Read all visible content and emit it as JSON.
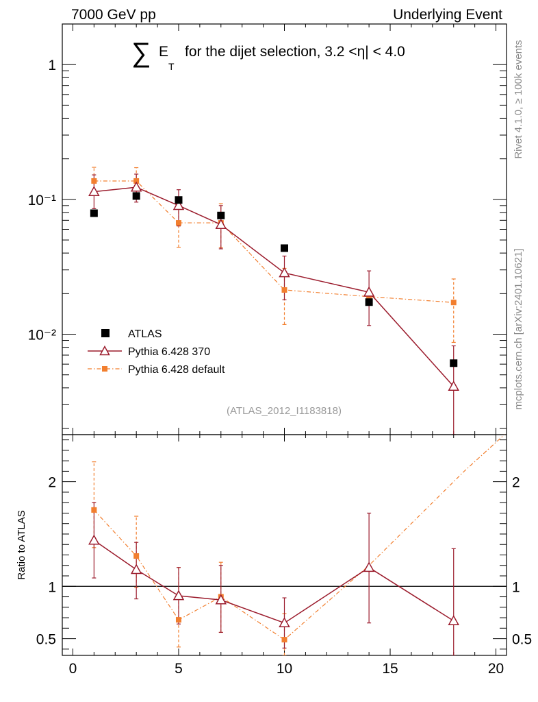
{
  "header": {
    "left": "7000 GeV pp",
    "right": "Underlying Event",
    "side_top": "Rivet 4.1.0, ≥ 100k events",
    "side_bottom": "mcplots.cern.ch [arXiv:2401.10621]"
  },
  "title": {
    "sum_symbol": "∑",
    "e": "E",
    "t_sub": "T",
    "rest": "for the dijet selection, 3.2 <η| < 4.0"
  },
  "analysis_id": "(ATLAS_2012_I1183818)",
  "colors": {
    "data": "#000000",
    "p370": "#9b1b2c",
    "pdef": "#f27f2f"
  },
  "chart_data": [
    {
      "type": "scatter",
      "scale": "log",
      "xlim": [
        -0.5,
        20.5
      ],
      "ylim": [
        0.0018,
        2.0
      ],
      "yticks": [
        {
          "value": 1,
          "label": "1"
        },
        {
          "value": 0.1,
          "label": "10⁻¹"
        },
        {
          "value": 0.01,
          "label": "10⁻²"
        }
      ],
      "legend": [
        "ATLAS",
        "Pythia 6.428 370",
        "Pythia 6.428 default"
      ],
      "legend_position": "bottom-left",
      "series": [
        {
          "name": "ATLAS",
          "style": "markers",
          "x": [
            1,
            3,
            5,
            7,
            10,
            14,
            18
          ],
          "y": [
            0.079,
            0.106,
            0.099,
            0.076,
            0.0435,
            0.0173,
            0.0061
          ]
        },
        {
          "name": "Pythia 6.428 370",
          "style": "line-triangle",
          "x": [
            1,
            3,
            5,
            7,
            10,
            14,
            18
          ],
          "y": [
            0.114,
            0.123,
            0.09,
            0.065,
            0.0285,
            0.0205,
            0.0041
          ],
          "err_lo": [
            0.0854,
            0.0955,
            0.0635,
            0.043,
            0.018,
            0.0116,
            0.0013
          ],
          "err_hi": [
            0.152,
            0.154,
            0.118,
            0.09,
            0.038,
            0.0295,
            0.0082
          ]
        },
        {
          "name": "Pythia 6.428 default",
          "style": "dashdot-square",
          "x": [
            1,
            3,
            5,
            7,
            10,
            14,
            18
          ],
          "y": [
            0.137,
            0.137,
            0.067,
            0.067,
            0.0213,
            0.019,
            0.0172
          ],
          "x_err": [
            0,
            0,
            0,
            0,
            0,
            0,
            0
          ],
          "err_lo": [
            0.108,
            0.104,
            0.0441,
            0.0438,
            0.0118,
            0.019,
            0.0087
          ],
          "err_hi": [
            0.173,
            0.172,
            0.09,
            0.093,
            0.0308,
            0.019,
            0.0257
          ]
        }
      ]
    },
    {
      "type": "line",
      "ylabel": "Ratio to ATLAS",
      "xlim": [
        -0.5,
        20.5
      ],
      "ylim": [
        0.34,
        2.45
      ],
      "yticks": [
        {
          "value": 0.5,
          "label": "0.5"
        },
        {
          "value": 1,
          "label": "1"
        },
        {
          "value": 2,
          "label": "2"
        }
      ],
      "xticks": [
        {
          "value": 0,
          "label": "0"
        },
        {
          "value": 5,
          "label": "5"
        },
        {
          "value": 10,
          "label": "10"
        },
        {
          "value": 15,
          "label": "15"
        },
        {
          "value": 20,
          "label": "20"
        }
      ],
      "reference": 1,
      "series": [
        {
          "name": "Pythia 6.428 370",
          "x": [
            1,
            3,
            5,
            7,
            10,
            14,
            18
          ],
          "y": [
            1.44,
            1.16,
            0.91,
            0.87,
            0.65,
            1.18,
            0.67
          ],
          "err_lo": [
            1.08,
            0.88,
            0.64,
            0.56,
            0.41,
            0.65,
            0.2
          ],
          "err_hi": [
            1.8,
            1.42,
            1.18,
            1.2,
            0.89,
            1.7,
            1.36
          ]
        },
        {
          "name": "Pythia 6.428 default",
          "x": [
            1,
            3,
            5,
            7,
            10,
            14,
            18.5,
            20.4
          ],
          "y": [
            1.73,
            1.29,
            0.68,
            0.9,
            0.49,
            1.2,
            2.1,
            2.45
          ],
          "err_lo": [
            1.37,
            0.99,
            0.42,
            0.56,
            0.33,
            1.2,
            2.1,
            2.45
          ],
          "err_hi": [
            2.19,
            1.67,
            1.18,
            1.23,
            0.74,
            1.2,
            2.1,
            2.45
          ],
          "has_marker": [
            true,
            true,
            true,
            true,
            true,
            false,
            false,
            false
          ]
        }
      ]
    }
  ]
}
